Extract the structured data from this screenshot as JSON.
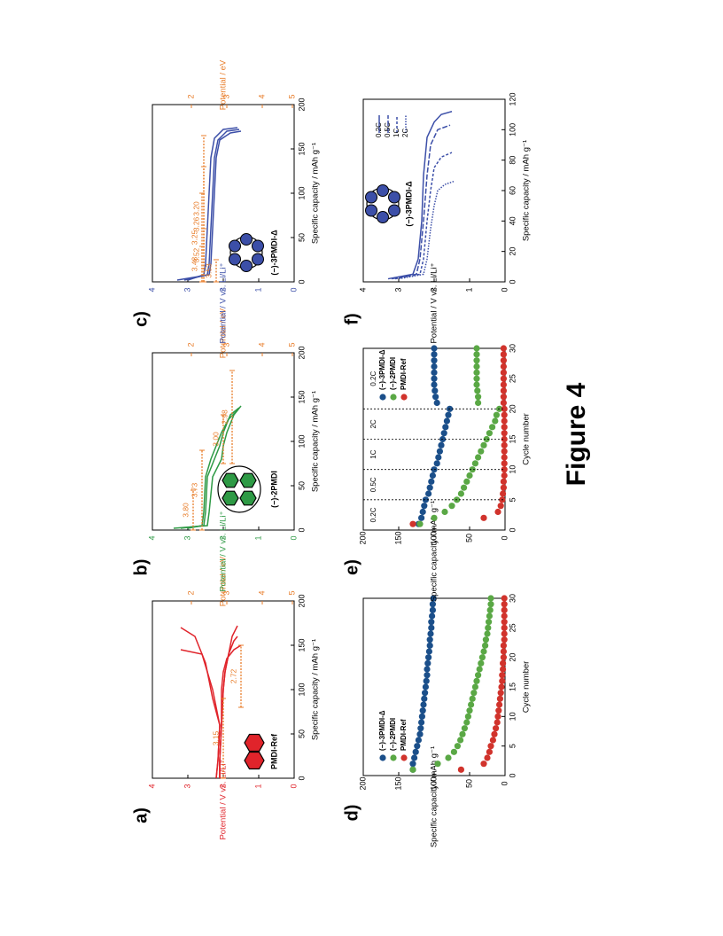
{
  "figure_title": "Figure 4",
  "colors": {
    "pmdi_ref": "#e0242b",
    "two_pmdi": "#2e9a45",
    "three_pmdi": "#3c4fa8",
    "three_pmdi_dark": "#1b4f8a",
    "green_marker": "#5aa845",
    "red_marker": "#d1332c",
    "potential_ev": "#e87d2a"
  },
  "panels": {
    "a": {
      "label": "a)",
      "molecule": "PMDI-Ref",
      "x_label": "Specific capacity / mAh g⁻¹",
      "y_label": "Potential / V vs. Li/Li⁺",
      "y2_label": "Potential / eV",
      "x_ticks": [
        "0",
        "50",
        "100",
        "150",
        "200"
      ],
      "y_ticks": [
        "0",
        "1",
        "2",
        "3",
        "4"
      ],
      "y2_ticks": [
        "5",
        "4",
        "3",
        "2"
      ],
      "annotations": [
        "3.15",
        "2.72"
      ]
    },
    "b": {
      "label": "b)",
      "molecule": "(−)-2PMDI",
      "x_label": "Specific capacity / mAh g⁻¹",
      "y_label": "Potential / V vs. Li/Li⁺",
      "y2_label": "Potential / eV",
      "x_ticks": [
        "0",
        "50",
        "100",
        "150",
        "200"
      ],
      "y_ticks": [
        "0",
        "1",
        "2",
        "3",
        "4"
      ],
      "y2_ticks": [
        "5",
        "4",
        "3",
        "2"
      ],
      "annotations": [
        "3.80",
        "3.73",
        "3.00",
        "2.98"
      ]
    },
    "c": {
      "label": "c)",
      "molecule": "(−)-3PMDI-Δ",
      "x_label": "Specific capacity / mAh g⁻¹",
      "y_label": "Potential / V vs. Li/Li⁺",
      "y2_label": "Potential / eV",
      "x_ticks": [
        "0",
        "50",
        "100",
        "150",
        "200"
      ],
      "y_ticks": [
        "0",
        "1",
        "2",
        "3",
        "4"
      ],
      "y2_ticks": [
        "5",
        "4",
        "3",
        "2"
      ],
      "annotations": [
        "3.53",
        "3.48",
        "3.52",
        "3.25",
        "3.26",
        "3.20"
      ]
    },
    "d": {
      "label": "d)",
      "x_label": "Cycle number",
      "y_label": "Specific capacity / mAh g⁻¹",
      "x_ticks": [
        "0",
        "5",
        "10",
        "15",
        "20",
        "25",
        "30"
      ],
      "y_ticks": [
        "0",
        "50",
        "100",
        "150",
        "200"
      ],
      "legend": [
        "(−)-3PMDI-Δ",
        "(−)-2PMDI",
        "PMDI-Ref"
      ]
    },
    "e": {
      "label": "e)",
      "x_label": "Cycle number",
      "y_label": "Specific capacity / mAh g⁻¹",
      "x_ticks": [
        "0",
        "5",
        "10",
        "15",
        "20",
        "25",
        "30"
      ],
      "y_ticks": [
        "0",
        "50",
        "100",
        "150",
        "200"
      ],
      "legend": [
        "(−)-3PMDI-Δ",
        "(−)-2PMDI",
        "PMDI-Ref"
      ],
      "rates": [
        "0.2C",
        "0.5C",
        "1C",
        "2C",
        "0.2C"
      ]
    },
    "f": {
      "label": "f)",
      "molecule": "(−)-3PMDI-Δ",
      "x_label": "Specific capacity / mAh g⁻¹",
      "y_label": "Potential / V vs. Li/Li⁺",
      "x_ticks": [
        "0",
        "20",
        "40",
        "60",
        "80",
        "100",
        "120"
      ],
      "y_ticks": [
        "0",
        "1",
        "2",
        "3",
        "4"
      ],
      "legend": [
        "0.2C",
        "0.5C",
        "1C",
        "2C"
      ]
    }
  },
  "chart_data": [
    {
      "type": "line",
      "panel": "a",
      "title": "",
      "xlabel": "Specific capacity / mAh g⁻¹",
      "ylabel": "Potential / V vs. Li/Li⁺",
      "xlim": [
        0,
        200
      ],
      "ylim": [
        0,
        4
      ],
      "secondary_ylabel": "Potential / eV",
      "secondary_ticks": [
        5,
        4,
        3,
        2
      ],
      "series": [
        {
          "x": [
            0,
            20,
            60,
            100,
            120,
            135,
            145,
            150
          ],
          "y": [
            2.1,
            2.1,
            2.05,
            2.05,
            2.0,
            1.9,
            1.7,
            1.5
          ]
        },
        {
          "x": [
            0,
            20,
            60,
            90,
            110,
            130,
            140,
            145
          ],
          "y": [
            2.2,
            2.15,
            2.1,
            2.3,
            2.4,
            2.5,
            2.6,
            3.2
          ]
        },
        {
          "x": [
            0,
            20,
            60,
            100,
            120,
            140,
            155,
            160
          ],
          "y": [
            2.1,
            2.1,
            2.05,
            2.0,
            1.95,
            1.85,
            1.7,
            1.6
          ]
        },
        {
          "x": [
            0,
            20,
            60,
            100,
            120,
            140,
            160,
            170
          ],
          "y": [
            2.2,
            2.15,
            2.1,
            2.3,
            2.45,
            2.6,
            2.8,
            3.2
          ]
        },
        {
          "x": [
            0,
            20,
            60,
            100,
            120,
            140,
            160,
            172
          ],
          "y": [
            2.1,
            2.1,
            2.05,
            2.0,
            1.95,
            1.85,
            1.75,
            1.6
          ]
        }
      ],
      "annotations": [
        {
          "text": "3.15",
          "xrange": [
            0,
            90
          ],
          "y": 2.0
        },
        {
          "text": "2.72",
          "xrange": [
            80,
            150
          ],
          "y": 1.5
        }
      ]
    },
    {
      "type": "line",
      "panel": "b",
      "title": "",
      "xlabel": "Specific capacity / mAh g⁻¹",
      "ylabel": "Potential / V vs. Li/Li⁺",
      "xlim": [
        0,
        200
      ],
      "ylim": [
        0,
        4
      ],
      "secondary_ylabel": "Potential / eV",
      "secondary_ticks": [
        5,
        4,
        3,
        2
      ],
      "series": [
        {
          "x": [
            2,
            5,
            20,
            60,
            80,
            95,
            110,
            130,
            140
          ],
          "y": [
            3.4,
            2.45,
            2.4,
            2.3,
            2.05,
            2.0,
            1.9,
            1.7,
            1.5
          ]
        },
        {
          "x": [
            2,
            5,
            20,
            60,
            80,
            95,
            110,
            130,
            138
          ],
          "y": [
            3.2,
            2.55,
            2.5,
            2.45,
            2.25,
            2.1,
            2.0,
            1.8,
            1.55
          ]
        },
        {
          "x": [
            2,
            5,
            20,
            60,
            80,
            95,
            110,
            125,
            135
          ],
          "y": [
            3.0,
            2.6,
            2.55,
            2.5,
            2.35,
            2.2,
            2.05,
            1.85,
            1.6
          ]
        }
      ],
      "annotations": [
        {
          "text": "3.80",
          "xrange": [
            0,
            45
          ],
          "y": 2.85
        },
        {
          "text": "3.73",
          "xrange": [
            0,
            90
          ],
          "y": 2.6
        },
        {
          "text": "3.00",
          "xrange": [
            75,
            130
          ],
          "y": 2.0
        },
        {
          "text": "2.98",
          "xrange": [
            75,
            180
          ],
          "y": 1.75
        }
      ]
    },
    {
      "type": "line",
      "panel": "c",
      "title": "",
      "xlabel": "Specific capacity / mAh g⁻¹",
      "ylabel": "Potential / V vs. Li/Li⁺",
      "xlim": [
        0,
        200
      ],
      "ylim": [
        0,
        4
      ],
      "secondary_ylabel": "Potential / eV",
      "secondary_ticks": [
        5,
        4,
        3,
        2
      ],
      "series": [
        {
          "x": [
            2,
            8,
            20,
            60,
            100,
            140,
            160,
            168,
            170
          ],
          "y": [
            3.3,
            2.4,
            2.35,
            2.3,
            2.25,
            2.2,
            2.1,
            1.8,
            1.5
          ]
        },
        {
          "x": [
            2,
            8,
            20,
            60,
            100,
            140,
            160,
            170,
            172
          ],
          "y": [
            3.1,
            2.45,
            2.4,
            2.35,
            2.3,
            2.25,
            2.15,
            1.9,
            1.55
          ]
        },
        {
          "x": [
            2,
            8,
            20,
            60,
            100,
            140,
            162,
            172,
            174
          ],
          "y": [
            3.0,
            2.55,
            2.5,
            2.45,
            2.4,
            2.35,
            2.25,
            2.0,
            1.6
          ]
        }
      ],
      "annotations": [
        {
          "text": "3.53",
          "xrange": [
            0,
            25
          ],
          "y": 2.2
        },
        {
          "text": "3.48",
          "xrange": [
            0,
            40
          ],
          "y": 2.6
        },
        {
          "text": "3.52",
          "xrange": [
            0,
            60
          ],
          "y": 2.55
        },
        {
          "text": "3.25",
          "xrange": [
            0,
            100
          ],
          "y": 2.6
        },
        {
          "text": "3.26",
          "xrange": [
            0,
            130
          ],
          "y": 2.55
        },
        {
          "text": "3.20",
          "xrange": [
            0,
            165
          ],
          "y": 2.55
        }
      ]
    },
    {
      "type": "scatter",
      "panel": "d",
      "title": "",
      "xlabel": "Cycle number",
      "ylabel": "Specific capacity / mAh g⁻¹",
      "xlim": [
        0,
        30
      ],
      "ylim": [
        0,
        200
      ],
      "legend_position": "top-left",
      "series": [
        {
          "name": "(−)-3PMDI-Δ",
          "x": [
            1,
            2,
            3,
            4,
            5,
            6,
            7,
            8,
            9,
            10,
            11,
            12,
            13,
            14,
            15,
            16,
            17,
            18,
            19,
            20,
            21,
            22,
            23,
            24,
            25,
            26,
            27,
            28,
            29,
            30
          ],
          "y": [
            130,
            130,
            128,
            126,
            124,
            122,
            120,
            119,
            118,
            117,
            116,
            115,
            114,
            113,
            112,
            111,
            110,
            110,
            109,
            108,
            107,
            106,
            106,
            105,
            104,
            104,
            103,
            102,
            102,
            101
          ]
        },
        {
          "name": "(−)-2PMDI",
          "x": [
            1,
            2,
            3,
            4,
            5,
            6,
            7,
            8,
            9,
            10,
            11,
            12,
            13,
            14,
            15,
            16,
            17,
            18,
            19,
            20,
            21,
            22,
            23,
            24,
            25,
            26,
            27,
            28,
            29,
            30
          ],
          "y": [
            130,
            95,
            80,
            72,
            67,
            63,
            60,
            57,
            54,
            52,
            50,
            48,
            46,
            44,
            42,
            40,
            38,
            36,
            34,
            32,
            30,
            28,
            27,
            25,
            24,
            23,
            22,
            21,
            20,
            20
          ]
        },
        {
          "name": "PMDI-Ref",
          "x": [
            1,
            2,
            3,
            4,
            5,
            6,
            7,
            8,
            9,
            10,
            11,
            12,
            13,
            14,
            15,
            16,
            17,
            18,
            19,
            20,
            21,
            22,
            23,
            24,
            25,
            26,
            27,
            28,
            29,
            30
          ],
          "y": [
            62,
            30,
            25,
            22,
            20,
            17,
            15,
            13,
            11,
            10,
            9,
            8,
            7,
            6,
            5,
            4,
            4,
            3,
            3,
            2,
            2,
            2,
            1,
            1,
            1,
            1,
            1,
            1,
            1,
            1
          ]
        }
      ]
    },
    {
      "type": "scatter",
      "panel": "e",
      "title": "",
      "xlabel": "Cycle number",
      "ylabel": "Specific capacity / mAh g⁻¹",
      "xlim": [
        0,
        30
      ],
      "ylim": [
        0,
        200
      ],
      "legend_position": "top-right",
      "rate_boundaries": [
        5,
        10,
        15,
        20
      ],
      "rate_labels": [
        "0.2C",
        "0.5C",
        "1C",
        "2C",
        "0.2C"
      ],
      "series": [
        {
          "name": "(−)-3PMDI-Δ",
          "x": [
            1,
            2,
            3,
            4,
            5,
            6,
            7,
            8,
            9,
            10,
            11,
            12,
            13,
            14,
            15,
            16,
            17,
            18,
            19,
            20,
            21,
            22,
            23,
            24,
            25,
            26,
            27,
            28,
            29,
            30
          ],
          "y": [
            122,
            118,
            116,
            114,
            112,
            108,
            106,
            104,
            102,
            100,
            96,
            94,
            92,
            90,
            88,
            86,
            84,
            82,
            80,
            78,
            96,
            98,
            99,
            100,
            100,
            100,
            100,
            100,
            100,
            100
          ]
        },
        {
          "name": "(−)-2PMDI",
          "x": [
            1,
            2,
            3,
            4,
            5,
            6,
            7,
            8,
            9,
            10,
            11,
            12,
            13,
            14,
            15,
            16,
            17,
            18,
            19,
            20,
            21,
            22,
            23,
            24,
            25,
            26,
            27,
            28,
            29,
            30
          ],
          "y": [
            120,
            100,
            85,
            75,
            68,
            62,
            58,
            54,
            50,
            46,
            42,
            38,
            34,
            30,
            26,
            22,
            18,
            14,
            12,
            8,
            38,
            38,
            39,
            40,
            40,
            40,
            40,
            40,
            40,
            40
          ]
        },
        {
          "name": "PMDI-Ref",
          "x": [
            1,
            2,
            3,
            4,
            5,
            6,
            7,
            8,
            9,
            10,
            11,
            12,
            13,
            14,
            15,
            16,
            17,
            18,
            19,
            20,
            21,
            22,
            23,
            24,
            25,
            26,
            27,
            28,
            29,
            30
          ],
          "y": [
            130,
            30,
            10,
            6,
            4,
            3,
            2,
            2,
            1,
            1,
            1,
            1,
            1,
            1,
            1,
            1,
            1,
            1,
            1,
            1,
            2,
            2,
            2,
            2,
            2,
            2,
            2,
            2,
            2,
            2
          ]
        }
      ]
    },
    {
      "type": "line",
      "panel": "f",
      "title": "",
      "xlabel": "Specific capacity / mAh g⁻¹",
      "ylabel": "Potential / V vs. Li/Li⁺",
      "xlim": [
        0,
        120
      ],
      "ylim": [
        0,
        4
      ],
      "legend_position": "top-right",
      "series": [
        {
          "name": "0.2C",
          "x": [
            2,
            5,
            15,
            40,
            70,
            95,
            105,
            110,
            112
          ],
          "y": [
            3.3,
            2.6,
            2.45,
            2.35,
            2.3,
            2.2,
            2.0,
            1.8,
            1.5
          ]
        },
        {
          "name": "0.5C",
          "x": [
            2,
            5,
            15,
            40,
            70,
            90,
            100,
            103
          ],
          "y": [
            3.2,
            2.5,
            2.4,
            2.3,
            2.2,
            2.1,
            1.9,
            1.55
          ]
        },
        {
          "name": "1C",
          "x": [
            2,
            5,
            15,
            40,
            60,
            75,
            82,
            85
          ],
          "y": [
            3.1,
            2.4,
            2.3,
            2.2,
            2.1,
            2.0,
            1.8,
            1.5
          ]
        },
        {
          "name": "2C",
          "x": [
            2,
            5,
            15,
            35,
            50,
            60,
            64,
            66
          ],
          "y": [
            3.0,
            2.3,
            2.2,
            2.1,
            2.0,
            1.9,
            1.7,
            1.45
          ]
        }
      ]
    }
  ]
}
